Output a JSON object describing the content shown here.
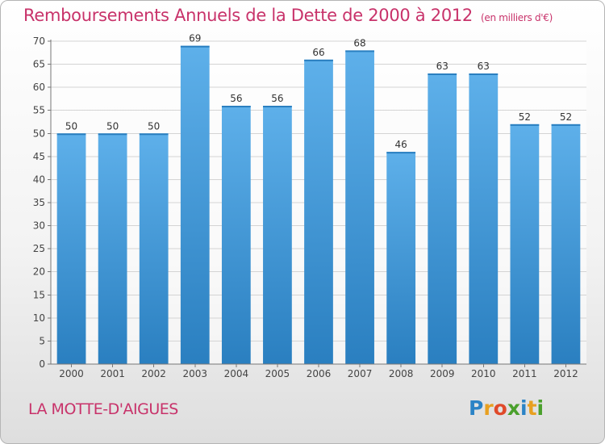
{
  "title": "Remboursements Annuels de la Dette de 2000 à 2012",
  "unit_note": "(en milliers d'€)",
  "commune": "LA MOTTE-D'AIGUES",
  "logo": {
    "letters": [
      "P",
      "r",
      "o",
      "x",
      "i",
      "t",
      "i"
    ],
    "colors": [
      "#2b83c6",
      "#e8a020",
      "#e04a2a",
      "#4aa02c",
      "#2b83c6",
      "#e8a020",
      "#4aa02c"
    ]
  },
  "colors": {
    "bar": "#3d9ad9",
    "bar_light": "#5eb0ea",
    "bar_dark": "#2a7fc0",
    "title": "#c8326a"
  },
  "chart_data": {
    "type": "bar",
    "categories": [
      "2000",
      "2001",
      "2002",
      "2003",
      "2004",
      "2005",
      "2006",
      "2007",
      "2008",
      "2009",
      "2010",
      "2011",
      "2012"
    ],
    "values": [
      50,
      50,
      50,
      69,
      56,
      56,
      66,
      68,
      46,
      63,
      63,
      52,
      52
    ],
    "ylim": [
      0,
      70
    ],
    "yticks": [
      0,
      5,
      10,
      15,
      20,
      25,
      30,
      35,
      40,
      45,
      50,
      55,
      60,
      65,
      70
    ],
    "grid": true
  }
}
